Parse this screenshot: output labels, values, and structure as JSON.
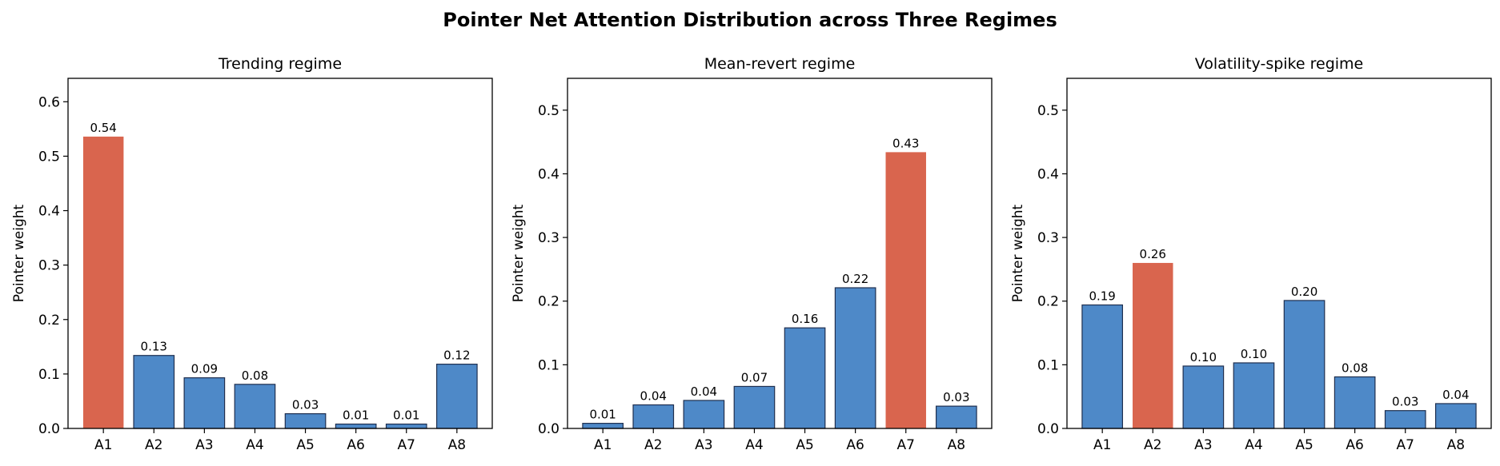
{
  "figure": {
    "title": "Pointer Net Attention Distribution across Three Regimes"
  },
  "colors": {
    "bar": "#4e89c8",
    "highlight": "#d9654e",
    "edge": "#1f2f4f"
  },
  "chart_data": [
    {
      "type": "bar",
      "title": "Trending regime",
      "ylabel": "Pointer weight",
      "xlabel": "",
      "categories": [
        "A1",
        "A2",
        "A3",
        "A4",
        "A5",
        "A6",
        "A7",
        "A8"
      ],
      "values": [
        0.536,
        0.134,
        0.093,
        0.081,
        0.027,
        0.008,
        0.008,
        0.118
      ],
      "labels": [
        "0.54",
        "0.13",
        "0.09",
        "0.08",
        "0.03",
        "0.01",
        "0.01",
        "0.12"
      ],
      "highlight_index": 0,
      "ylim": [
        0,
        0.643
      ],
      "yticks": [
        0,
        0.1,
        0.2,
        0.3,
        0.4,
        0.5,
        0.6
      ],
      "ytick_labels": [
        "0.0",
        "0.1",
        "0.2",
        "0.3",
        "0.4",
        "0.5",
        "0.6"
      ],
      "grid": false
    },
    {
      "type": "bar",
      "title": "Mean-revert regime",
      "ylabel": "Pointer weight",
      "xlabel": "",
      "categories": [
        "A1",
        "A2",
        "A3",
        "A4",
        "A5",
        "A6",
        "A7",
        "A8"
      ],
      "values": [
        0.008,
        0.037,
        0.044,
        0.066,
        0.158,
        0.221,
        0.434,
        0.035
      ],
      "labels": [
        "0.01",
        "0.04",
        "0.04",
        "0.07",
        "0.16",
        "0.22",
        "0.43",
        "0.03"
      ],
      "highlight_index": 6,
      "ylim": [
        0,
        0.55
      ],
      "yticks": [
        0,
        0.1,
        0.2,
        0.3,
        0.4,
        0.5
      ],
      "ytick_labels": [
        "0.0",
        "0.1",
        "0.2",
        "0.3",
        "0.4",
        "0.5"
      ],
      "grid": false
    },
    {
      "type": "bar",
      "title": "Volatility-spike regime",
      "ylabel": "Pointer weight",
      "xlabel": "",
      "categories": [
        "A1",
        "A2",
        "A3",
        "A4",
        "A5",
        "A6",
        "A7",
        "A8"
      ],
      "values": [
        0.194,
        0.26,
        0.098,
        0.103,
        0.201,
        0.081,
        0.028,
        0.039
      ],
      "labels": [
        "0.19",
        "0.26",
        "0.10",
        "0.10",
        "0.20",
        "0.08",
        "0.03",
        "0.04"
      ],
      "highlight_index": 1,
      "ylim": [
        0,
        0.55
      ],
      "yticks": [
        0,
        0.1,
        0.2,
        0.3,
        0.4,
        0.5
      ],
      "ytick_labels": [
        "0.0",
        "0.1",
        "0.2",
        "0.3",
        "0.4",
        "0.5"
      ],
      "grid": false
    }
  ]
}
